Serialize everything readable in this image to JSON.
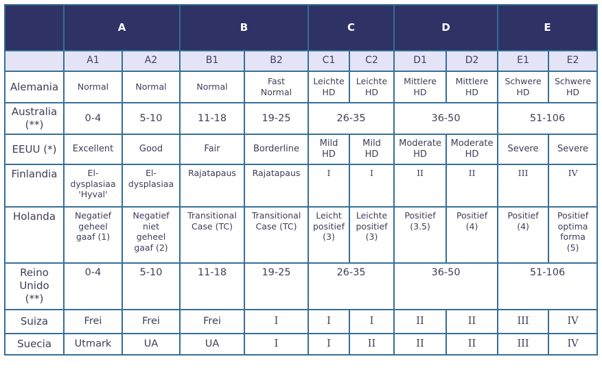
{
  "colors": {
    "group_header_bg": "#2e3264",
    "group_header_text": "#ffffff",
    "subheader_bg": "#e4e4f6",
    "border": "#346e96",
    "cell_text": "#3d3d57"
  },
  "table": {
    "groups": [
      "A",
      "B",
      "C",
      "D",
      "E"
    ],
    "subcolumns": [
      "A1",
      "A2",
      "B1",
      "B2",
      "C1",
      "C2",
      "D1",
      "D2",
      "E1",
      "E2"
    ],
    "rows": [
      {
        "country": "Alemania",
        "cells": [
          {
            "text": "Normal"
          },
          {
            "text": "Normal"
          },
          {
            "text": "Normal"
          },
          {
            "text": "Fast\nNormal"
          },
          {
            "text": "Leichte\nHD"
          },
          {
            "text": "Leichte\nHD"
          },
          {
            "text": "Mittlere\nHD"
          },
          {
            "text": "Mittlere\nHD"
          },
          {
            "text": "Schwere\nHD"
          },
          {
            "text": "Schwere\nHD"
          }
        ]
      },
      {
        "country": "Australia\n(**)",
        "cells": [
          {
            "text": "0-4"
          },
          {
            "text": "5-10"
          },
          {
            "text": "11-18"
          },
          {
            "text": "19-25"
          },
          {
            "text": "26-35",
            "colspan": 2
          },
          {
            "text": "36-50",
            "colspan": 2
          },
          {
            "text": "51-106",
            "colspan": 2
          }
        ]
      },
      {
        "country": "EEUU (*)",
        "cells": [
          {
            "text": "Excellent"
          },
          {
            "text": "Good"
          },
          {
            "text": "Fair"
          },
          {
            "text": "Borderline"
          },
          {
            "text": "Mild\nHD"
          },
          {
            "text": "Mild\nHD"
          },
          {
            "text": "Moderate\nHD"
          },
          {
            "text": "Moderate\nHD"
          },
          {
            "text": "Severe"
          },
          {
            "text": "Severe"
          }
        ]
      },
      {
        "country": "Finlandia",
        "cells": [
          {
            "text": "El-\ndysplasiaa\n'Hyval'"
          },
          {
            "text": "El-\ndysplasiaa"
          },
          {
            "text": "Rajatapaus"
          },
          {
            "text": "Rajatapaus"
          },
          {
            "text": "I"
          },
          {
            "text": "I"
          },
          {
            "text": "II"
          },
          {
            "text": "II"
          },
          {
            "text": "III"
          },
          {
            "text": "IV"
          }
        ]
      },
      {
        "country": "Holanda",
        "cells": [
          {
            "text": "Negatief\ngeheel\ngaaf (1)"
          },
          {
            "text": "Negatief\nniet\ngeheel\ngaaf (2)"
          },
          {
            "text": "Transitional\nCase (TC)"
          },
          {
            "text": "Transitional\nCase (TC)"
          },
          {
            "text": "Leicht\npositief\n(3)"
          },
          {
            "text": "Leichte\npositief\n(3)"
          },
          {
            "text": "Positief\n(3.5)"
          },
          {
            "text": "Positief\n(4)"
          },
          {
            "text": "Positief\n(4)"
          },
          {
            "text": "Positief\noptima\nforma\n(5)"
          }
        ]
      },
      {
        "country": "Reino\nUnido\n(**)",
        "cells": [
          {
            "text": "0-4"
          },
          {
            "text": "5-10"
          },
          {
            "text": "11-18"
          },
          {
            "text": "19-25"
          },
          {
            "text": "26-35",
            "colspan": 2
          },
          {
            "text": "36-50",
            "colspan": 2
          },
          {
            "text": "51-106",
            "colspan": 2
          }
        ]
      },
      {
        "country": "Suiza",
        "cells": [
          {
            "text": "Frei"
          },
          {
            "text": "Frei"
          },
          {
            "text": "Frei"
          },
          {
            "text": "I"
          },
          {
            "text": "I"
          },
          {
            "text": "I"
          },
          {
            "text": "II"
          },
          {
            "text": "II"
          },
          {
            "text": "III"
          },
          {
            "text": "IV"
          }
        ]
      },
      {
        "country": "Suecia",
        "cells": [
          {
            "text": "Utmark"
          },
          {
            "text": "UA"
          },
          {
            "text": "UA"
          },
          {
            "text": "I"
          },
          {
            "text": "I"
          },
          {
            "text": "II"
          },
          {
            "text": "II"
          },
          {
            "text": "II"
          },
          {
            "text": "III"
          },
          {
            "text": "IV"
          }
        ]
      }
    ]
  }
}
